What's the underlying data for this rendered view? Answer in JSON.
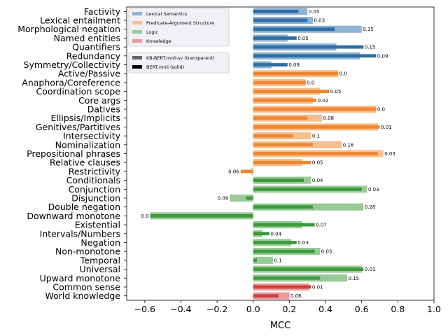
{
  "chart_data": {
    "type": "bar",
    "orientation": "horizontal",
    "xlabel": "MCC",
    "xlim": [
      -0.7,
      1.0
    ],
    "xticks": [
      -0.6,
      -0.4,
      -0.2,
      0.0,
      0.2,
      0.4,
      0.6,
      0.8,
      1.0
    ],
    "xtick_labels": [
      "−0.6",
      "−0.4",
      "−0.2",
      "0.0",
      "0.2",
      "0.4",
      "0.6",
      "0.8",
      "1.0"
    ],
    "grid": false,
    "legend_placement": "top-left",
    "groups": [
      {
        "name": "Lexical Semantics",
        "color_solid": "#2f6fa3",
        "color_transparent": "#8fb3d3"
      },
      {
        "name": "Predicate-Argument Structure",
        "color_solid": "#ee8732",
        "color_transparent": "#f5bf8f"
      },
      {
        "name": "Logic",
        "color_solid": "#3d9a3d",
        "color_transparent": "#98cb98"
      },
      {
        "name": "Knowledge",
        "color_solid": "#cf4040",
        "color_transparent": "#e99b9b"
      }
    ],
    "series_legend": [
      {
        "name": "KB-BERT.mnli-sv (transparent)",
        "color": "#666666"
      },
      {
        "name": "BERT.mnli (solid)",
        "color": "#000000"
      }
    ],
    "categories": [
      {
        "label": "Factivity",
        "group": 0,
        "kb": 0.3,
        "bert": 0.25,
        "diff_label": "0.05"
      },
      {
        "label": "Lexical entailment",
        "group": 0,
        "kb": 0.33,
        "bert": 0.3,
        "diff_label": "0.03"
      },
      {
        "label": "Morphological negation",
        "group": 0,
        "kb": 0.6,
        "bert": 0.45,
        "diff_label": "0.15"
      },
      {
        "label": "Named entities",
        "group": 0,
        "kb": 0.19,
        "bert": 0.24,
        "diff_label": "0.05"
      },
      {
        "label": "Quantifiers",
        "group": 0,
        "kb": 0.46,
        "bert": 0.61,
        "diff_label": "0.15"
      },
      {
        "label": "Redundancy",
        "group": 0,
        "kb": 0.59,
        "bert": 0.68,
        "diff_label": "0.09"
      },
      {
        "label": "Symmetry/Collectivity",
        "group": 0,
        "kb": 0.1,
        "bert": 0.19,
        "diff_label": "0.09"
      },
      {
        "label": "Active/Passive",
        "group": 1,
        "kb": 0.47,
        "bert": 0.47,
        "diff_label": "0.0"
      },
      {
        "label": "Anaphora/Coreference",
        "group": 1,
        "kb": 0.29,
        "bert": 0.29,
        "diff_label": "0.0"
      },
      {
        "label": "Coordination scope",
        "group": 1,
        "kb": 0.37,
        "bert": 0.42,
        "diff_label": "0.05"
      },
      {
        "label": "Core args",
        "group": 1,
        "kb": 0.33,
        "bert": 0.35,
        "diff_label": "0.02"
      },
      {
        "label": "Datives",
        "group": 1,
        "kb": 0.68,
        "bert": 0.68,
        "diff_label": "0.0"
      },
      {
        "label": "Ellipsis/Implicits",
        "group": 1,
        "kb": 0.38,
        "bert": 0.3,
        "diff_label": "0.08"
      },
      {
        "label": "Genitives/Partitives",
        "group": 1,
        "kb": 0.69,
        "bert": 0.7,
        "diff_label": "0.01"
      },
      {
        "label": "Intersectivity",
        "group": 1,
        "kb": 0.32,
        "bert": 0.22,
        "diff_label": "0.1"
      },
      {
        "label": "Nominalization",
        "group": 1,
        "kb": 0.49,
        "bert": 0.33,
        "diff_label": "0.16"
      },
      {
        "label": "Prepositional phrases",
        "group": 1,
        "kb": 0.72,
        "bert": 0.69,
        "diff_label": "0.03"
      },
      {
        "label": "Relative clauses",
        "group": 1,
        "kb": 0.27,
        "bert": 0.32,
        "diff_label": "0.05"
      },
      {
        "label": "Restrictivity",
        "group": 1,
        "kb": -0.01,
        "bert": -0.07,
        "diff_label": "0.06"
      },
      {
        "label": "Conditionals",
        "group": 2,
        "kb": 0.32,
        "bert": 0.28,
        "diff_label": "0.04"
      },
      {
        "label": "Conjunction",
        "group": 2,
        "kb": 0.63,
        "bert": 0.6,
        "diff_label": "0.03"
      },
      {
        "label": "Disjunction",
        "group": 2,
        "kb": -0.13,
        "bert": -0.04,
        "diff_label": "0.09"
      },
      {
        "label": "Double negation",
        "group": 2,
        "kb": 0.61,
        "bert": 0.33,
        "diff_label": "0.28"
      },
      {
        "label": "Downward monotone",
        "group": 2,
        "kb": -0.57,
        "bert": -0.57,
        "diff_label": "0.0"
      },
      {
        "label": "Existential",
        "group": 2,
        "kb": 0.27,
        "bert": 0.34,
        "diff_label": "0.07"
      },
      {
        "label": "Intervals/Numbers",
        "group": 2,
        "kb": 0.05,
        "bert": 0.09,
        "diff_label": "0.04"
      },
      {
        "label": "Negation",
        "group": 2,
        "kb": 0.21,
        "bert": 0.24,
        "diff_label": "0.03"
      },
      {
        "label": "Non-monotone",
        "group": 2,
        "kb": 0.37,
        "bert": 0.34,
        "diff_label": "0.03"
      },
      {
        "label": "Temporal",
        "group": 2,
        "kb": 0.11,
        "bert": 0.02,
        "diff_label": "0.1"
      },
      {
        "label": "Universal",
        "group": 2,
        "kb": 0.6,
        "bert": 0.61,
        "diff_label": "0.01"
      },
      {
        "label": "Upward monotone",
        "group": 2,
        "kb": 0.52,
        "bert": 0.37,
        "diff_label": "0.15"
      },
      {
        "label": "Common sense",
        "group": 3,
        "kb": 0.31,
        "bert": 0.32,
        "diff_label": "0.01"
      },
      {
        "label": "World knowledge",
        "group": 3,
        "kb": 0.2,
        "bert": 0.14,
        "diff_label": "0.06"
      }
    ]
  }
}
